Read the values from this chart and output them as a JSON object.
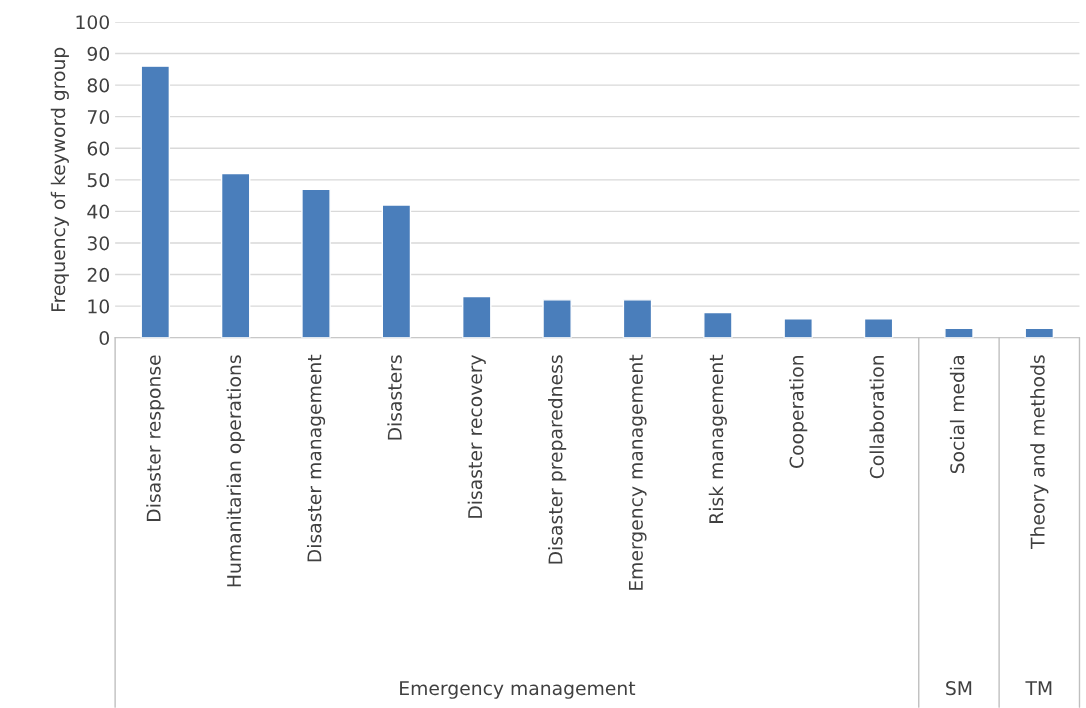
{
  "chart_data": {
    "type": "bar",
    "ylabel": "Frequency of keyword group",
    "categories": [
      "Disaster response",
      "Humanitarian operations",
      "Disaster management",
      "Disasters",
      "Disaster recovery",
      "Disaster preparedness",
      "Emergency management",
      "Risk management",
      "Cooperation",
      "Collaboration",
      "Social media",
      "Theory and methods"
    ],
    "values": [
      86,
      52,
      47,
      42,
      13,
      12,
      12,
      8,
      6,
      6,
      3,
      3
    ],
    "color": "#4a7ebb",
    "ylim": [
      0,
      100
    ],
    "yticks": [
      0,
      10,
      20,
      30,
      40,
      50,
      60,
      70,
      80,
      90,
      100
    ],
    "grid": "y",
    "annotations": [
      "Emergency management",
      "SM",
      "TM"
    ]
  }
}
